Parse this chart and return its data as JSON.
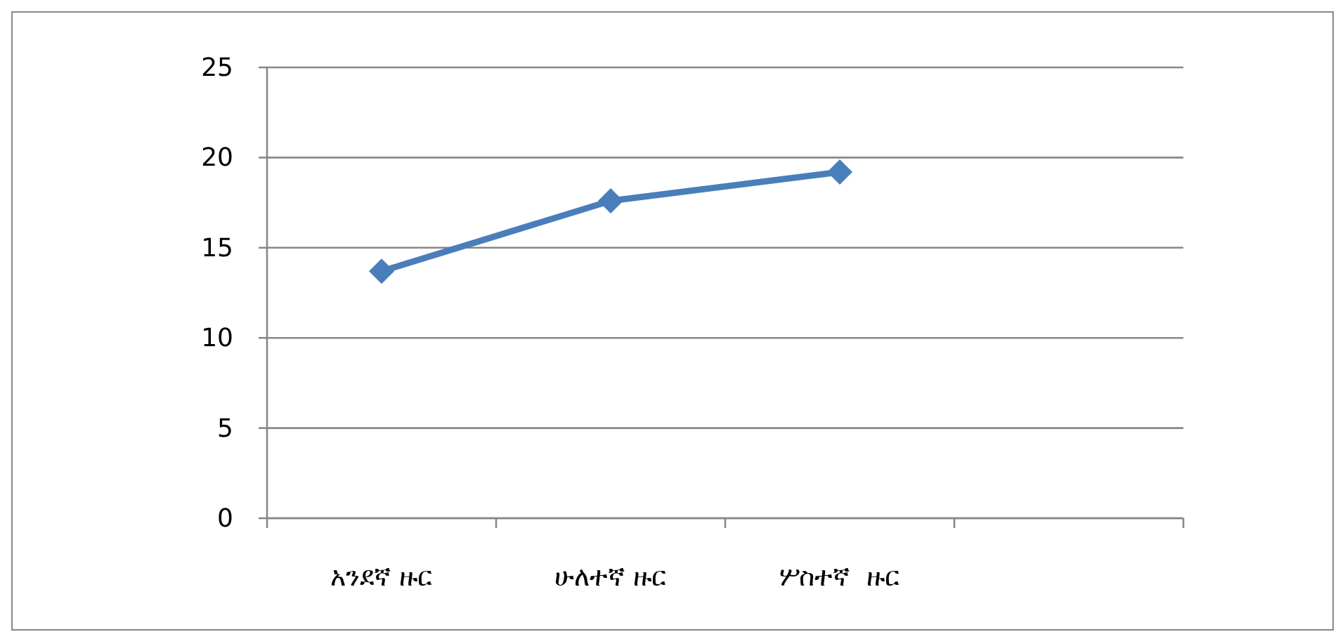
{
  "chart_data": {
    "type": "line",
    "categories": [
      "አንደኛ ዙር",
      "ሁለተኛ ዙር",
      "ሦስተኛ  ዙር",
      null
    ],
    "series": [
      {
        "color": "#4a7ebb",
        "values": [
          13.7,
          17.6,
          19.2,
          null
        ]
      }
    ],
    "ylim": [
      0,
      25
    ],
    "yticks": [
      0,
      5,
      10,
      15,
      20,
      25
    ],
    "grid": "y",
    "marker": "diamond",
    "line_style": "solid"
  }
}
